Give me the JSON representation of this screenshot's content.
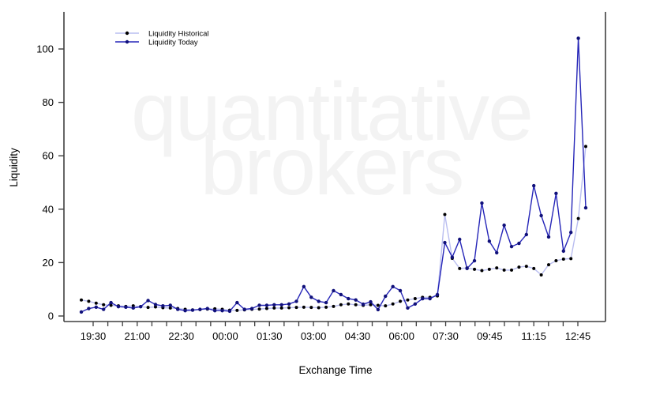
{
  "watermark": {
    "line1": "quantitative",
    "line2": "brokers",
    "color": "#f3f3f3"
  },
  "chart_data": {
    "type": "line",
    "title": "",
    "xlabel": "Exchange Time",
    "ylabel": "Liquidity",
    "ylim": [
      0,
      104
    ],
    "yticks": [
      0,
      20,
      40,
      60,
      80,
      100
    ],
    "xtick_labels": [
      "19:30",
      "21:00",
      "22:30",
      "00:00",
      "01:30",
      "03:00",
      "04:30",
      "06:00",
      "07:30",
      "09:45",
      "11:15",
      "12:45"
    ],
    "minor_ticks_between_labels": 2,
    "grid": false,
    "legend_position": "top-left",
    "axis_color": "#3f3f3f",
    "tick_label_color": "#000000",
    "series": [
      {
        "name": "Liquidity Historical",
        "line_color": "#b9bdf0",
        "marker_color": "#a9adе8",
        "values": [
          6,
          5.5,
          4.8,
          4.2,
          4,
          3.8,
          3.6,
          3.8,
          3.5,
          3.2,
          3.4,
          3.1,
          3,
          2.8,
          2.5,
          2.3,
          2.4,
          2.6,
          2.7,
          2.5,
          2.2,
          2.1,
          2.3,
          2.5,
          2.6,
          2.8,
          3,
          3,
          3.1,
          3.2,
          3.3,
          3.2,
          3.1,
          3.3,
          3.6,
          4.2,
          4.5,
          4.2,
          4,
          4.2,
          4,
          3.8,
          4.5,
          5.5,
          6,
          6.5,
          7,
          7,
          7.5,
          38,
          21.6,
          17.8,
          18,
          17.5,
          17,
          17.5,
          18,
          17.2,
          17.2,
          18.3,
          18.6,
          17.8,
          15.4,
          19.2,
          20.7,
          21.3,
          21.5,
          36.5,
          63.5
        ]
      },
      {
        "name": "Liquidity Today",
        "line_color": "#2626b8",
        "marker_color": "#10107a",
        "values": [
          1.5,
          2.8,
          3.3,
          2.5,
          5,
          3.5,
          3.3,
          3,
          3.5,
          5.8,
          4.3,
          3.8,
          4,
          2.5,
          2,
          2.2,
          2.5,
          2.8,
          2,
          2,
          1.8,
          5,
          2.5,
          2.8,
          4,
          4,
          4.2,
          4.2,
          4.5,
          5.5,
          11,
          7,
          5.5,
          5,
          9.5,
          8,
          6.5,
          6,
          4.4,
          5.3,
          2.4,
          7.4,
          11,
          9.5,
          3,
          4.5,
          6.5,
          6.5,
          8,
          27.5,
          22,
          28.7,
          17.8,
          20.7,
          42.3,
          28,
          23.7,
          34,
          26,
          27.2,
          30.5,
          48.8,
          37.6,
          29.6,
          45.9,
          24.3,
          31.3,
          104,
          40.5
        ]
      }
    ]
  }
}
